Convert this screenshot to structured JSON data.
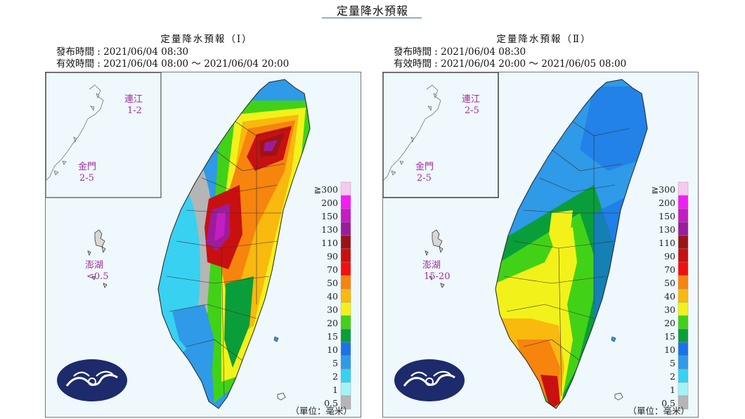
{
  "page_title": "定量降水預報",
  "legend": {
    "labels": [
      "≧300",
      "200",
      "150",
      "130",
      "110",
      "90",
      "70",
      "50",
      "40",
      "30",
      "20",
      "15",
      "10",
      "5",
      "2",
      "1",
      "0.5"
    ],
    "colors": [
      "#f9c8f0",
      "#f21df2",
      "#c21dc2",
      "#9c1c9c",
      "#9b1414",
      "#c91010",
      "#f30f0f",
      "#f7840d",
      "#f9b90e",
      "#f2f21a",
      "#41d217",
      "#0a9e3a",
      "#1a73e8",
      "#2f9ae8",
      "#38d1f2",
      "#a3f3f6",
      "#b5b5b5"
    ],
    "unit": "（單位：毫米）"
  },
  "panels": [
    {
      "title": "定量降水預報（Ⅰ）",
      "issue_time": "發布時間 : 2021/06/04 08:30",
      "valid_time": "有效時間 : 2021/06/04 08:00 ～ 2021/06/04 20:00",
      "islands": {
        "lienchiang_name": "連江",
        "lienchiang_value": "1-2",
        "kinmen_name": "金門",
        "kinmen_value": "2-5",
        "penghu_name": "澎湖",
        "penghu_value": "<0.5"
      }
    },
    {
      "title": "定量降水預報（Ⅱ）",
      "issue_time": "發布時間 : 2021/06/04 08:30",
      "valid_time": "有效時間 : 2021/06/04 20:00 ～ 2021/06/05 08:00",
      "islands": {
        "lienchiang_name": "連江",
        "lienchiang_value": "2-5",
        "kinmen_name": "金門",
        "kinmen_value": "2-5",
        "penghu_name": "澎湖",
        "penghu_value": "15-20"
      }
    }
  ]
}
